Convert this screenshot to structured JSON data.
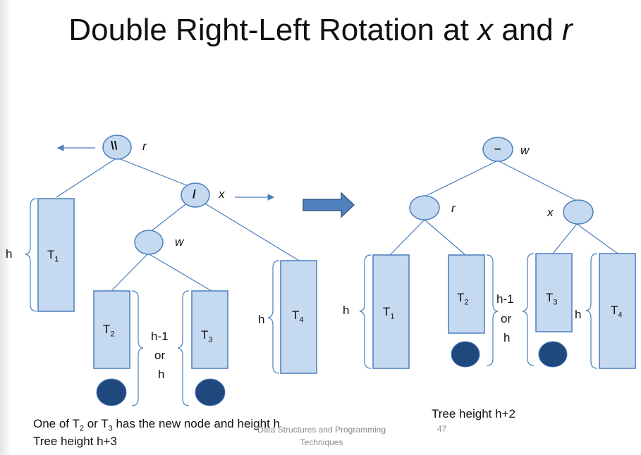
{
  "slide": {
    "title_start": "Double Right-Left Rotation at ",
    "title_x": "x",
    "title_and": " and ",
    "title_r": "r",
    "page_number": "47",
    "footer_line1": "Data Structures and Programming",
    "footer_line2": "Techniques"
  },
  "before": {
    "root_symbol": "\\\\",
    "root_label": "r",
    "mid_symbol": "/",
    "mid_label": "x",
    "inner_label": "w",
    "t1": "T",
    "t1_sub": "1",
    "t2": "T",
    "t2_sub": "2",
    "t3": "T",
    "t3_sub": "3",
    "t4": "T",
    "t4_sub": "4",
    "h_left": "h",
    "h_right": "h",
    "mid_h1": "h-1",
    "mid_or": "or",
    "mid_h2": "h"
  },
  "after": {
    "root_symbol": "–",
    "root_label": "w",
    "left_label": "r",
    "right_label": "x",
    "t1": "T",
    "t1_sub": "1",
    "t2": "T",
    "t2_sub": "2",
    "t3": "T",
    "t3_sub": "3",
    "t4": "T",
    "t4_sub": "4",
    "h_left": "h",
    "h_right": "h",
    "mid_h1": "h-1",
    "mid_or": "or",
    "mid_h2": "h"
  },
  "notes": {
    "line1_a": "One of T",
    "line1_sub_a": "2",
    "line1_b": " or T",
    "line1_sub_b": "3",
    "line1_c": " has the new node and height h",
    "line2": "Tree height h+3",
    "right": "Tree height h+2"
  },
  "colors": {
    "node_fill": "#c5d9f1",
    "stroke": "#4a7ebb",
    "new_node": "#1f497d",
    "arrow_fill": "#4f81bd"
  }
}
